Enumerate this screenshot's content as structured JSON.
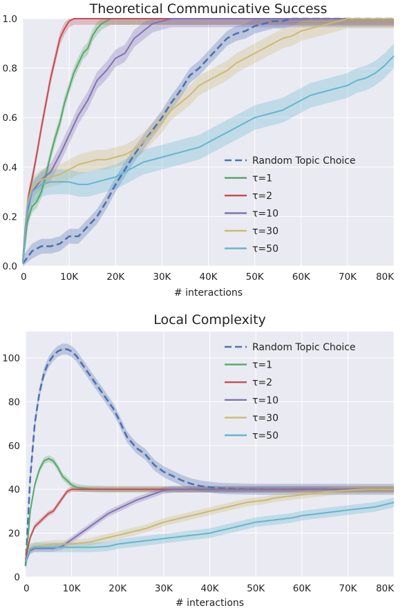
{
  "chart_data": [
    {
      "type": "line",
      "title": "Theoretical Communicative Success",
      "xlabel": "# interactions",
      "ylabel": "",
      "xlim": [
        0,
        80000
      ],
      "ylim": [
        0,
        1.0
      ],
      "xtick_labels": [
        "0",
        "10K",
        "20K",
        "30K",
        "40K",
        "50K",
        "60K",
        "70K",
        "80K"
      ],
      "xtick_values": [
        0,
        10000,
        20000,
        30000,
        40000,
        50000,
        60000,
        70000,
        80000
      ],
      "ytick_labels": [
        "0.0",
        "0.2",
        "0.4",
        "0.6",
        "0.8",
        "1.0"
      ],
      "ytick_values": [
        0,
        0.2,
        0.4,
        0.6,
        0.8,
        1.0
      ],
      "grid": true,
      "legend_position": "lower-right",
      "series": [
        {
          "name": "Random Topic Choice",
          "color": "#4c72b0",
          "dashed": true,
          "band": 0.03,
          "x": [
            0,
            2000,
            4000,
            6000,
            8000,
            10000,
            12000,
            14000,
            16000,
            18000,
            20000,
            22000,
            24000,
            26000,
            28000,
            30000,
            32000,
            34000,
            36000,
            38000,
            40000,
            42000,
            44000,
            46000,
            48000,
            50000,
            52000,
            54000,
            56000,
            58000,
            60000,
            62000,
            64000,
            66000,
            68000,
            70000,
            72000,
            74000,
            76000,
            78000,
            80000
          ],
          "y": [
            0.01,
            0.06,
            0.08,
            0.08,
            0.09,
            0.12,
            0.12,
            0.16,
            0.2,
            0.26,
            0.33,
            0.39,
            0.45,
            0.5,
            0.55,
            0.6,
            0.66,
            0.71,
            0.77,
            0.8,
            0.84,
            0.88,
            0.92,
            0.94,
            0.95,
            0.97,
            0.98,
            0.99,
            0.99,
            1.0,
            1.0,
            1.0,
            1.0,
            1.0,
            1.0,
            1.0,
            1.0,
            1.0,
            1.0,
            1.0,
            1.0
          ]
        },
        {
          "name": "τ=1",
          "color": "#55a868",
          "dashed": false,
          "band": 0.025,
          "x": [
            0,
            1000,
            2000,
            3000,
            4000,
            5000,
            6000,
            7000,
            8000,
            9000,
            10000,
            11000,
            12000,
            13000,
            14000,
            15000,
            16000,
            17000,
            18000,
            19000,
            20000,
            21000,
            22000,
            80000
          ],
          "y": [
            0.01,
            0.18,
            0.24,
            0.26,
            0.3,
            0.37,
            0.45,
            0.52,
            0.58,
            0.66,
            0.72,
            0.78,
            0.82,
            0.86,
            0.88,
            0.93,
            0.96,
            0.98,
            0.99,
            1.0,
            1.0,
            1.0,
            1.0,
            1.0
          ]
        },
        {
          "name": "τ=2",
          "color": "#c44e52",
          "dashed": false,
          "band": 0.025,
          "x": [
            0,
            500,
            1000,
            1500,
            2000,
            3000,
            4000,
            5000,
            6000,
            7000,
            8000,
            9000,
            10000,
            11000,
            12000,
            13000,
            14000,
            80000
          ],
          "y": [
            0.02,
            0.15,
            0.25,
            0.31,
            0.35,
            0.45,
            0.56,
            0.66,
            0.76,
            0.84,
            0.92,
            0.96,
            0.99,
            1.0,
            1.0,
            1.0,
            1.0,
            1.0
          ]
        },
        {
          "name": "τ=10",
          "color": "#8172b2",
          "dashed": false,
          "band": 0.035,
          "x": [
            0,
            1000,
            2000,
            4000,
            6000,
            8000,
            10000,
            12000,
            14000,
            16000,
            18000,
            20000,
            22000,
            24000,
            26000,
            28000,
            30000,
            32000,
            80000
          ],
          "y": [
            0.02,
            0.22,
            0.3,
            0.35,
            0.38,
            0.45,
            0.53,
            0.61,
            0.67,
            0.75,
            0.79,
            0.84,
            0.86,
            0.92,
            0.95,
            0.98,
            0.99,
            1.0,
            1.0
          ]
        },
        {
          "name": "τ=30",
          "color": "#ccb974",
          "dashed": false,
          "band": 0.04,
          "x": [
            0,
            1000,
            2000,
            4000,
            6000,
            8000,
            10000,
            12000,
            14000,
            16000,
            18000,
            20000,
            22000,
            24000,
            26000,
            28000,
            30000,
            32000,
            34000,
            36000,
            38000,
            40000,
            42000,
            44000,
            46000,
            48000,
            50000,
            52000,
            54000,
            56000,
            58000,
            60000,
            62000,
            64000,
            66000,
            68000,
            70000,
            72000,
            74000,
            76000,
            78000,
            80000
          ],
          "y": [
            0.01,
            0.25,
            0.32,
            0.35,
            0.36,
            0.37,
            0.39,
            0.41,
            0.42,
            0.43,
            0.43,
            0.44,
            0.45,
            0.47,
            0.5,
            0.54,
            0.58,
            0.63,
            0.66,
            0.69,
            0.73,
            0.75,
            0.77,
            0.79,
            0.82,
            0.84,
            0.86,
            0.88,
            0.9,
            0.92,
            0.93,
            0.95,
            0.96,
            0.97,
            0.98,
            0.99,
            1.0,
            1.0,
            1.0,
            1.0,
            1.0,
            1.0
          ]
        },
        {
          "name": "τ=50",
          "color": "#64b5cd",
          "dashed": false,
          "band": 0.05,
          "x": [
            0,
            1000,
            2000,
            4000,
            6000,
            8000,
            10000,
            12000,
            14000,
            16000,
            18000,
            20000,
            22000,
            24000,
            26000,
            28000,
            30000,
            32000,
            34000,
            36000,
            38000,
            40000,
            42000,
            44000,
            46000,
            48000,
            50000,
            52000,
            54000,
            56000,
            58000,
            60000,
            62000,
            64000,
            66000,
            68000,
            70000,
            72000,
            74000,
            76000,
            78000,
            80000
          ],
          "y": [
            0.01,
            0.24,
            0.3,
            0.33,
            0.34,
            0.34,
            0.34,
            0.33,
            0.33,
            0.34,
            0.35,
            0.36,
            0.38,
            0.4,
            0.42,
            0.43,
            0.44,
            0.45,
            0.46,
            0.47,
            0.48,
            0.5,
            0.52,
            0.54,
            0.56,
            0.58,
            0.6,
            0.61,
            0.62,
            0.63,
            0.65,
            0.67,
            0.69,
            0.7,
            0.71,
            0.72,
            0.73,
            0.75,
            0.76,
            0.78,
            0.81,
            0.85
          ]
        }
      ]
    },
    {
      "type": "line",
      "title": "Local Complexity",
      "xlabel": "# interactions",
      "ylabel": "",
      "xlim": [
        0,
        80000
      ],
      "ylim": [
        0,
        112
      ],
      "xtick_labels": [
        "0",
        "10K",
        "20K",
        "30K",
        "40K",
        "50K",
        "60K",
        "70K",
        "80K"
      ],
      "xtick_values": [
        0,
        10000,
        20000,
        30000,
        40000,
        50000,
        60000,
        70000,
        80000
      ],
      "ytick_labels": [
        "0",
        "20",
        "40",
        "60",
        "80",
        "100"
      ],
      "ytick_values": [
        0,
        20,
        40,
        60,
        80,
        100
      ],
      "grid": true,
      "legend_position": "upper-right",
      "series": [
        {
          "name": "Random Topic Choice",
          "color": "#4c72b0",
          "dashed": true,
          "band": 2.5,
          "x": [
            0,
            1000,
            2000,
            3000,
            4000,
            5000,
            6000,
            7000,
            8000,
            9000,
            10000,
            11000,
            12000,
            13000,
            14000,
            15000,
            16000,
            17000,
            18000,
            19000,
            20000,
            22000,
            24000,
            26000,
            28000,
            30000,
            32000,
            34000,
            36000,
            38000,
            40000,
            42000,
            44000,
            48000,
            52000,
            60000,
            70000,
            80000
          ],
          "y": [
            5,
            45,
            70,
            84,
            93,
            98,
            101,
            103,
            104,
            104,
            103,
            101,
            98,
            95,
            92,
            89,
            86,
            83,
            80,
            77,
            73,
            64,
            59,
            56,
            51,
            48,
            46,
            44,
            42.5,
            41.5,
            41,
            40.5,
            40.3,
            40.1,
            40,
            40,
            40,
            40
          ]
        },
        {
          "name": "τ=1",
          "color": "#55a868",
          "dashed": false,
          "band": 1.5,
          "x": [
            0,
            1000,
            2000,
            3000,
            4000,
            5000,
            6000,
            7000,
            8000,
            9000,
            10000,
            11000,
            12000,
            13000,
            14000,
            16000,
            18000,
            20000,
            80000
          ],
          "y": [
            5,
            30,
            42,
            49,
            53,
            54,
            53,
            50,
            46,
            44,
            42,
            41,
            40.6,
            40.4,
            40.2,
            40.1,
            40,
            40,
            40
          ]
        },
        {
          "name": "τ=2",
          "color": "#c44e52",
          "dashed": false,
          "band": 1.2,
          "x": [
            0,
            1000,
            2000,
            3000,
            4000,
            5000,
            6000,
            7000,
            8000,
            9000,
            10000,
            11000,
            12000,
            14000,
            80000
          ],
          "y": [
            8,
            18,
            23,
            25,
            27,
            29,
            30,
            33,
            36,
            39,
            40,
            40,
            40,
            40,
            40
          ]
        },
        {
          "name": "τ=10",
          "color": "#8172b2",
          "dashed": false,
          "band": 1.5,
          "x": [
            0,
            1000,
            2000,
            4000,
            6000,
            8000,
            10000,
            12000,
            14000,
            16000,
            18000,
            20000,
            22000,
            24000,
            26000,
            28000,
            30000,
            32000,
            34000,
            80000
          ],
          "y": [
            7,
            12,
            13,
            13,
            13,
            14,
            17,
            20,
            23,
            26,
            29,
            31,
            33,
            35,
            36.5,
            38,
            39.5,
            40,
            40,
            40
          ]
        },
        {
          "name": "τ=30",
          "color": "#ccb974",
          "dashed": false,
          "band": 1.8,
          "x": [
            0,
            1000,
            2000,
            4000,
            6000,
            8000,
            10000,
            12000,
            14000,
            16000,
            18000,
            20000,
            22000,
            24000,
            26000,
            28000,
            30000,
            32000,
            34000,
            36000,
            38000,
            40000,
            42000,
            44000,
            46000,
            48000,
            50000,
            52000,
            54000,
            56000,
            58000,
            60000,
            62000,
            64000,
            66000,
            68000,
            70000,
            72000,
            74000,
            76000,
            78000,
            80000
          ],
          "y": [
            7,
            13,
            14,
            14.5,
            15,
            15,
            15,
            15.5,
            16,
            17,
            18,
            19,
            20,
            21,
            22,
            23.5,
            25,
            26,
            27,
            28,
            29,
            30,
            31,
            32,
            33,
            34,
            34.5,
            35,
            36,
            36.5,
            37,
            37.5,
            38,
            38.5,
            39,
            39.3,
            39.6,
            39.8,
            40,
            40,
            40,
            40
          ]
        },
        {
          "name": "τ=50",
          "color": "#64b5cd",
          "dashed": false,
          "band": 2.2,
          "x": [
            0,
            1000,
            2000,
            4000,
            6000,
            8000,
            10000,
            12000,
            14000,
            16000,
            18000,
            20000,
            22000,
            24000,
            26000,
            28000,
            30000,
            32000,
            34000,
            36000,
            38000,
            40000,
            42000,
            44000,
            46000,
            48000,
            50000,
            52000,
            54000,
            56000,
            58000,
            60000,
            62000,
            64000,
            66000,
            68000,
            70000,
            72000,
            74000,
            76000,
            78000,
            80000
          ],
          "y": [
            7,
            13,
            13.5,
            13.5,
            13.5,
            13.5,
            13.5,
            13.5,
            13.5,
            13.7,
            14,
            15,
            15.5,
            16,
            16.5,
            17,
            17.5,
            18,
            18.5,
            19,
            19.5,
            20,
            21,
            22,
            23,
            24,
            25,
            25.5,
            26,
            26.5,
            27,
            28,
            28.5,
            29,
            29.5,
            30,
            30.5,
            31,
            31.5,
            32,
            33,
            34
          ]
        }
      ]
    }
  ]
}
